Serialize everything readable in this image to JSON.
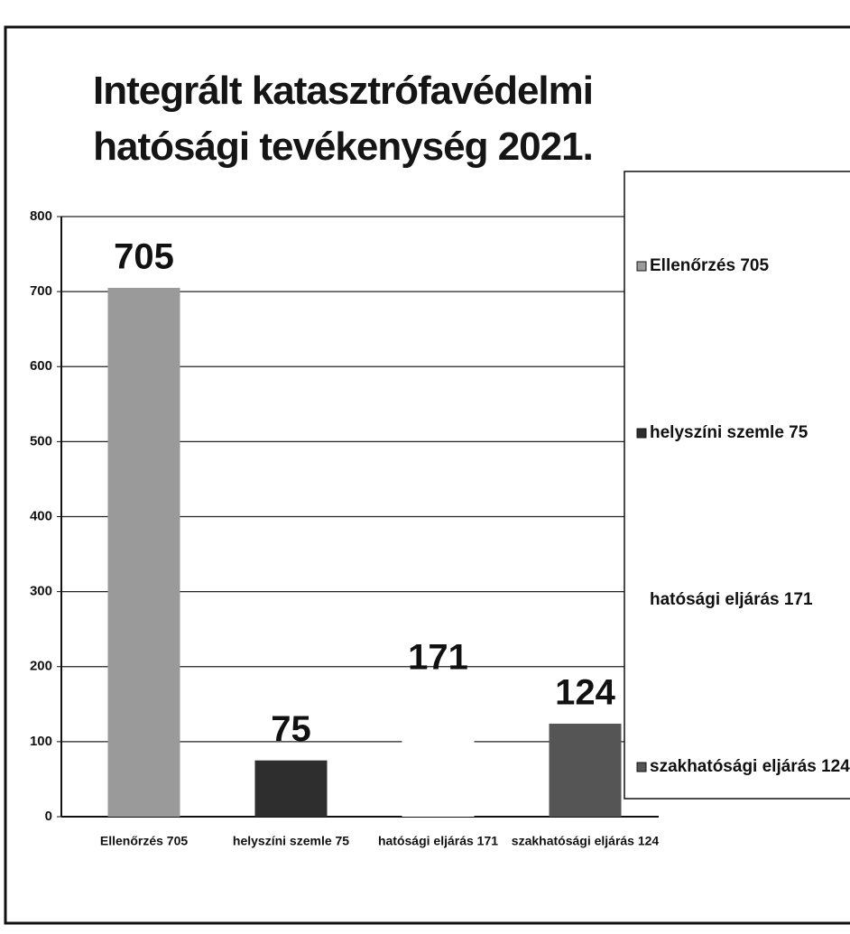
{
  "chart_data": {
    "type": "bar",
    "title": "Integrált katasztrófavédelmi hatósági tevékenység 2021.",
    "categories": [
      "Ellenőrzés 705",
      "helyszíni szemle 75",
      "hatósági eljárás 171",
      "szakhatósági eljárás 124"
    ],
    "values": [
      705,
      75,
      171,
      124
    ],
    "colors": [
      "#9a9a9a",
      "#2e2e2e",
      "#ffffff",
      "#555555"
    ],
    "ylim": [
      0,
      800
    ],
    "yticks": [
      0,
      100,
      200,
      300,
      400,
      500,
      600,
      700,
      800
    ],
    "grid": true,
    "legend": "right"
  }
}
